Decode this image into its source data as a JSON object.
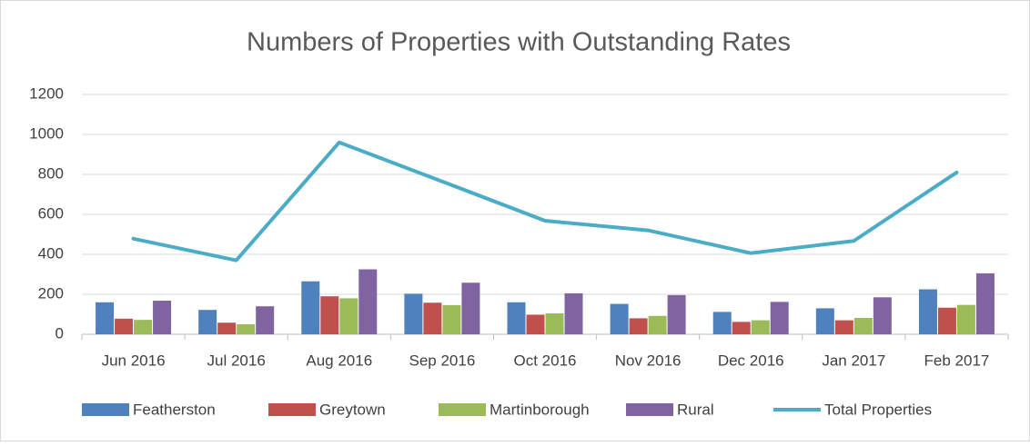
{
  "chart_data": {
    "type": "bar_line",
    "title": "Numbers of Properties with Outstanding Rates",
    "categories": [
      "Jun 2016",
      "Jul 2016",
      "Aug 2016",
      "Sep 2016",
      "Oct 2016",
      "Nov 2016",
      "Dec 2016",
      "Jan 2017",
      "Feb 2017"
    ],
    "series": [
      {
        "name": "Featherston",
        "color": "#4f81bd",
        "values": [
          160,
          122,
          265,
          203,
          160,
          152,
          112,
          130,
          225
        ]
      },
      {
        "name": "Greytown",
        "color": "#c0504d",
        "values": [
          78,
          58,
          190,
          158,
          98,
          80,
          62,
          70,
          133
        ]
      },
      {
        "name": "Martinborough",
        "color": "#9bbb59",
        "values": [
          72,
          50,
          180,
          146,
          105,
          92,
          70,
          82,
          147
        ]
      },
      {
        "name": "Rural",
        "color": "#8064a2",
        "values": [
          168,
          140,
          325,
          258,
          205,
          196,
          162,
          185,
          305
        ]
      },
      {
        "name": "Total Properties",
        "color": "#4bacc6",
        "type": "line",
        "values": [
          478,
          370,
          960,
          765,
          568,
          520,
          406,
          467,
          810
        ]
      }
    ],
    "ylim": [
      0,
      1200
    ],
    "yticks": [
      0,
      200,
      400,
      600,
      800,
      1000,
      1200
    ],
    "grid": true,
    "legend": "bottom"
  }
}
